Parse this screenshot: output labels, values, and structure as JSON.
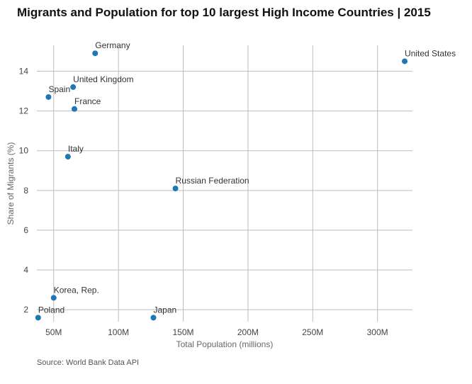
{
  "chart_data": {
    "type": "scatter",
    "title": "Migrants and Population for top 10 largest High Income Countries | 2015",
    "xlabel": "Total Population (millions)",
    "ylabel": "Share of Migrants (%)",
    "source": "Source: World Bank Data API",
    "xlim": [
      37,
      327
    ],
    "ylim": [
      1.4,
      15.3
    ],
    "x_ticks": [
      50,
      100,
      150,
      200,
      250,
      300
    ],
    "x_tick_labels": [
      "50M",
      "100M",
      "150M",
      "200M",
      "250M",
      "300M"
    ],
    "y_ticks": [
      2,
      4,
      6,
      8,
      10,
      12,
      14
    ],
    "y_tick_labels": [
      "2",
      "4",
      "6",
      "8",
      "10",
      "12",
      "14"
    ],
    "grid": true,
    "point_color": "#1f77b4",
    "points": [
      {
        "label": "United States",
        "x": 321,
        "y": 14.5
      },
      {
        "label": "Germany",
        "x": 82,
        "y": 14.9
      },
      {
        "label": "United Kingdom",
        "x": 65,
        "y": 13.2
      },
      {
        "label": "Spain",
        "x": 46,
        "y": 12.7
      },
      {
        "label": "France",
        "x": 66,
        "y": 12.1
      },
      {
        "label": "Italy",
        "x": 61,
        "y": 9.7
      },
      {
        "label": "Russian Federation",
        "x": 144,
        "y": 8.1
      },
      {
        "label": "Korea, Rep.",
        "x": 50,
        "y": 2.6
      },
      {
        "label": "Poland",
        "x": 38,
        "y": 1.6
      },
      {
        "label": "Japan",
        "x": 127,
        "y": 1.6
      }
    ]
  }
}
